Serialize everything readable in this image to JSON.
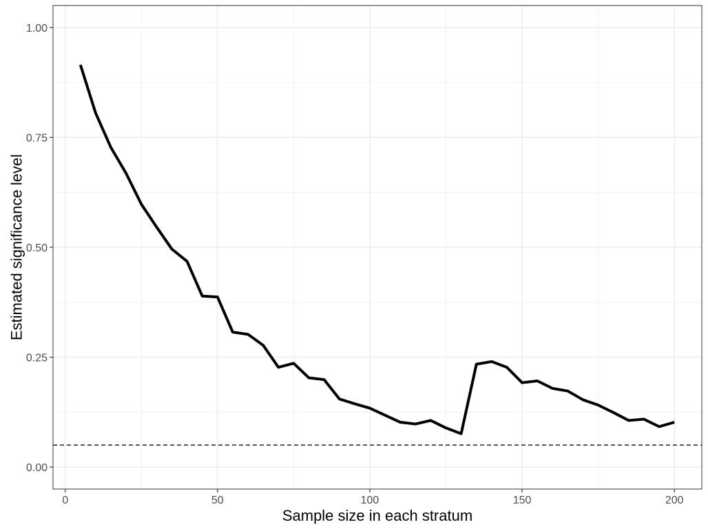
{
  "chart_data": {
    "type": "line",
    "title": "",
    "xlabel": "Sample size in each stratum",
    "ylabel": "Estimated significance level",
    "xlim": [
      -4,
      209
    ],
    "ylim": [
      -0.05,
      1.05
    ],
    "x_ticks": [
      0,
      50,
      100,
      150,
      200
    ],
    "x_tick_labels": [
      "0",
      "50",
      "100",
      "150",
      "200"
    ],
    "y_ticks": [
      0,
      0.25,
      0.5,
      0.75,
      1.0
    ],
    "y_tick_labels": [
      "0.00",
      "0.25",
      "0.50",
      "0.75",
      "1.00"
    ],
    "x_minor": [
      25,
      75,
      125,
      175
    ],
    "y_minor": [
      0.125,
      0.375,
      0.625,
      0.875
    ],
    "grid": true,
    "reference_line": {
      "y": 0.05,
      "style": "dashed",
      "color": "#333333"
    },
    "series": [
      {
        "color": "#000000",
        "x": [
          5,
          10,
          15,
          20,
          25,
          30,
          35,
          40,
          45,
          50,
          55,
          60,
          65,
          70,
          75,
          80,
          85,
          90,
          95,
          100,
          105,
          110,
          115,
          120,
          125,
          130,
          135,
          140,
          145,
          150,
          155,
          160,
          165,
          170,
          175,
          180,
          185,
          190,
          195,
          200
        ],
        "y": [
          0.915,
          0.805,
          0.727,
          0.668,
          0.598,
          0.546,
          0.496,
          0.468,
          0.389,
          0.387,
          0.307,
          0.302,
          0.277,
          0.227,
          0.236,
          0.203,
          0.199,
          0.155,
          0.144,
          0.134,
          0.118,
          0.102,
          0.098,
          0.106,
          0.089,
          0.076,
          0.234,
          0.24,
          0.227,
          0.192,
          0.196,
          0.179,
          0.173,
          0.153,
          0.141,
          0.124,
          0.106,
          0.109,
          0.092,
          0.102
        ]
      }
    ]
  }
}
